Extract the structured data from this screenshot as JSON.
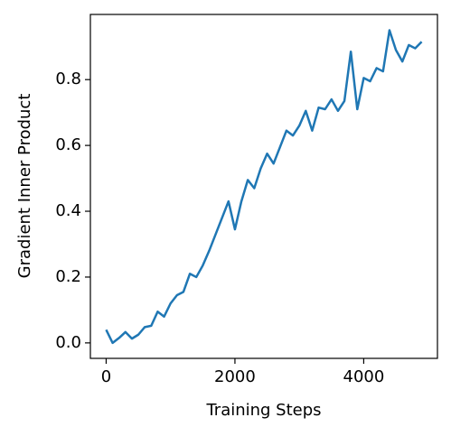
{
  "chart_data": {
    "type": "line",
    "xlabel": "Training Steps",
    "ylabel": "Gradient Inner Product",
    "x": [
      0,
      100,
      200,
      300,
      400,
      500,
      600,
      700,
      800,
      900,
      1000,
      1100,
      1200,
      1300,
      1400,
      1500,
      1600,
      1700,
      1800,
      1900,
      2000,
      2100,
      2200,
      2300,
      2400,
      2500,
      2600,
      2700,
      2800,
      2900,
      3000,
      3100,
      3200,
      3300,
      3400,
      3500,
      3600,
      3700,
      3800,
      3900,
      4000,
      4100,
      4200,
      4300,
      4400,
      4500,
      4600,
      4700,
      4800,
      4900
    ],
    "series": [
      {
        "color": "#1f77b4",
        "values": [
          0.04,
          0.0,
          0.015,
          0.033,
          0.013,
          0.025,
          0.048,
          0.052,
          0.095,
          0.08,
          0.12,
          0.145,
          0.155,
          0.21,
          0.2,
          0.235,
          0.28,
          0.33,
          0.38,
          0.43,
          0.345,
          0.43,
          0.495,
          0.47,
          0.53,
          0.575,
          0.545,
          0.595,
          0.645,
          0.63,
          0.66,
          0.705,
          0.645,
          0.715,
          0.71,
          0.74,
          0.705,
          0.735,
          0.885,
          0.71,
          0.805,
          0.795,
          0.835,
          0.825,
          0.95,
          0.89,
          0.855,
          0.905,
          0.895,
          0.915
        ]
      }
    ],
    "xlim": [
      -245,
      5145
    ],
    "ylim": [
      -0.047,
      0.998
    ],
    "xticks": [
      0,
      2000,
      4000
    ],
    "yticks": [
      {
        "value": 0,
        "label": "0.0"
      },
      0.2,
      0.4,
      0.6,
      0.8
    ]
  }
}
